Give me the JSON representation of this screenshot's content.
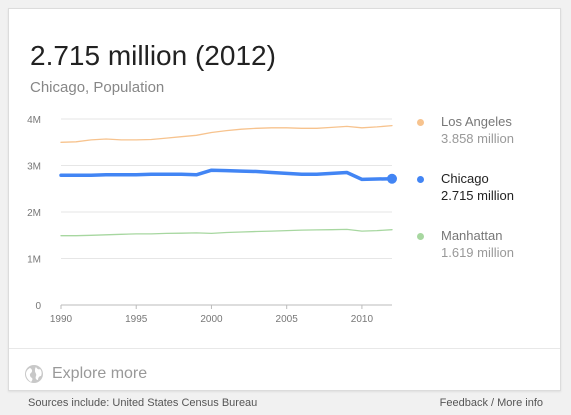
{
  "headline": "2.715 million (2012)",
  "subtitle": "Chicago, Population",
  "colors": {
    "los_angeles": "#f7c38e",
    "chicago": "#4285f4",
    "manhattan": "#a7d7a0",
    "grid": "#e6e6e6",
    "axis_text": "#777777"
  },
  "legend": [
    {
      "name": "Los Angeles",
      "value": "3.858 million",
      "color": "#f7c38e",
      "selected": false
    },
    {
      "name": "Chicago",
      "value": "2.715 million",
      "color": "#4285f4",
      "selected": true
    },
    {
      "name": "Manhattan",
      "value": "1.619 million",
      "color": "#a7d7a0",
      "selected": false
    }
  ],
  "chart_data": {
    "type": "line",
    "title": "",
    "xlabel": "",
    "ylabel": "",
    "xlim": [
      1990,
      2012
    ],
    "ylim": [
      0,
      4000000
    ],
    "y_ticks": [
      {
        "value": 0,
        "label": "0"
      },
      {
        "value": 1000000,
        "label": "1M"
      },
      {
        "value": 2000000,
        "label": "2M"
      },
      {
        "value": 3000000,
        "label": "3M"
      },
      {
        "value": 4000000,
        "label": "4M"
      }
    ],
    "x_ticks": [
      {
        "value": 1990,
        "label": "1990"
      },
      {
        "value": 1995,
        "label": "1995"
      },
      {
        "value": 2000,
        "label": "2000"
      },
      {
        "value": 2005,
        "label": "2005"
      },
      {
        "value": 2010,
        "label": "2010"
      }
    ],
    "grid": true,
    "legend_position": "right",
    "x": [
      1990,
      1991,
      1992,
      1993,
      1994,
      1995,
      1996,
      1997,
      1998,
      1999,
      2000,
      2001,
      2002,
      2003,
      2004,
      2005,
      2006,
      2007,
      2008,
      2009,
      2010,
      2011,
      2012
    ],
    "series": [
      {
        "name": "Los Angeles",
        "color": "#f7c38e",
        "values": [
          3500000,
          3510000,
          3550000,
          3570000,
          3550000,
          3550000,
          3560000,
          3590000,
          3620000,
          3650000,
          3710000,
          3750000,
          3780000,
          3800000,
          3810000,
          3810000,
          3800000,
          3800000,
          3820000,
          3840000,
          3810000,
          3830000,
          3858000
        ]
      },
      {
        "name": "Chicago",
        "color": "#4285f4",
        "values": [
          2790000,
          2790000,
          2790000,
          2800000,
          2800000,
          2800000,
          2810000,
          2810000,
          2810000,
          2800000,
          2900000,
          2890000,
          2880000,
          2870000,
          2850000,
          2830000,
          2810000,
          2810000,
          2830000,
          2850000,
          2700000,
          2710000,
          2715000
        ]
      },
      {
        "name": "Manhattan",
        "color": "#a7d7a0",
        "values": [
          1490000,
          1490000,
          1500000,
          1510000,
          1520000,
          1530000,
          1530000,
          1540000,
          1545000,
          1550000,
          1540000,
          1560000,
          1570000,
          1580000,
          1590000,
          1600000,
          1610000,
          1615000,
          1620000,
          1625000,
          1590000,
          1600000,
          1619000
        ]
      }
    ]
  },
  "explore": {
    "label": "Explore more"
  },
  "footer": {
    "sources": "Sources include: United States Census Bureau",
    "feedback": "Feedback",
    "separator": "/",
    "more_info": "More info"
  }
}
